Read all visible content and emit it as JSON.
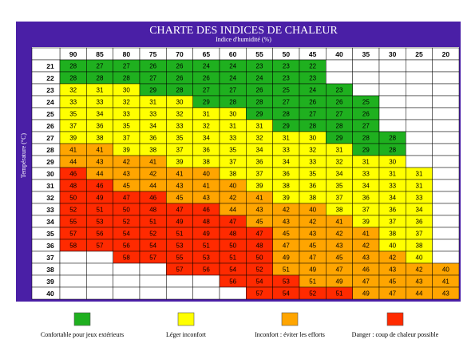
{
  "title": "CHARTE DES INDICES DE CHALEUR",
  "subtitle": "Indice d'humidité (%)",
  "y_label": "Température (°C)",
  "columns": [
    90,
    85,
    80,
    75,
    70,
    65,
    60,
    55,
    50,
    45,
    40,
    35,
    30,
    25,
    20
  ],
  "rows": [
    {
      "temp": 21,
      "values": [
        28,
        27,
        27,
        26,
        26,
        24,
        24,
        23,
        23,
        22,
        null,
        null,
        null,
        null,
        null
      ],
      "levels": [
        0,
        0,
        0,
        0,
        0,
        0,
        0,
        0,
        0,
        0,
        null,
        null,
        null,
        null,
        null
      ]
    },
    {
      "temp": 22,
      "values": [
        28,
        28,
        28,
        27,
        26,
        26,
        24,
        24,
        23,
        23,
        null,
        null,
        null,
        null,
        null
      ],
      "levels": [
        0,
        0,
        0,
        0,
        0,
        0,
        0,
        0,
        0,
        0,
        null,
        null,
        null,
        null,
        null
      ]
    },
    {
      "temp": 23,
      "values": [
        32,
        31,
        30,
        29,
        28,
        27,
        27,
        26,
        25,
        24,
        23,
        null,
        null,
        null,
        null
      ],
      "levels": [
        1,
        1,
        1,
        0,
        0,
        0,
        0,
        0,
        0,
        0,
        0,
        null,
        null,
        null,
        null
      ]
    },
    {
      "temp": 24,
      "values": [
        33,
        33,
        32,
        31,
        30,
        29,
        28,
        28,
        27,
        26,
        26,
        25,
        null,
        null,
        null
      ],
      "levels": [
        1,
        1,
        1,
        1,
        1,
        0,
        0,
        0,
        0,
        0,
        0,
        0,
        null,
        null,
        null
      ]
    },
    {
      "temp": 25,
      "values": [
        35,
        34,
        33,
        33,
        32,
        31,
        30,
        29,
        28,
        27,
        27,
        26,
        null,
        null,
        null
      ],
      "levels": [
        1,
        1,
        1,
        1,
        1,
        1,
        1,
        0,
        0,
        0,
        0,
        0,
        null,
        null,
        null
      ]
    },
    {
      "temp": 26,
      "values": [
        37,
        36,
        35,
        34,
        33,
        32,
        31,
        31,
        29,
        28,
        28,
        27,
        null,
        null,
        null
      ],
      "levels": [
        1,
        1,
        1,
        1,
        1,
        1,
        1,
        1,
        0,
        0,
        0,
        0,
        null,
        null,
        null
      ]
    },
    {
      "temp": 27,
      "values": [
        39,
        38,
        37,
        36,
        35,
        34,
        33,
        32,
        31,
        30,
        29,
        28,
        28,
        null,
        null
      ],
      "levels": [
        1,
        1,
        1,
        1,
        1,
        1,
        1,
        1,
        1,
        1,
        0,
        0,
        0,
        null,
        null
      ]
    },
    {
      "temp": 28,
      "values": [
        41,
        41,
        39,
        38,
        37,
        36,
        35,
        34,
        33,
        32,
        31,
        29,
        28,
        null,
        null
      ],
      "levels": [
        2,
        2,
        1,
        1,
        1,
        1,
        1,
        1,
        1,
        1,
        1,
        0,
        0,
        null,
        null
      ]
    },
    {
      "temp": 29,
      "values": [
        44,
        43,
        42,
        41,
        39,
        38,
        37,
        36,
        34,
        33,
        32,
        31,
        30,
        null,
        null
      ],
      "levels": [
        2,
        2,
        2,
        2,
        1,
        1,
        1,
        1,
        1,
        1,
        1,
        1,
        1,
        null,
        null
      ]
    },
    {
      "temp": 30,
      "values": [
        46,
        44,
        43,
        42,
        41,
        40,
        38,
        37,
        36,
        35,
        34,
        33,
        31,
        31,
        null
      ],
      "levels": [
        3,
        2,
        2,
        2,
        2,
        2,
        1,
        1,
        1,
        1,
        1,
        1,
        1,
        1,
        null
      ]
    },
    {
      "temp": 31,
      "values": [
        48,
        46,
        45,
        44,
        43,
        41,
        40,
        39,
        38,
        36,
        35,
        34,
        33,
        31,
        null
      ],
      "levels": [
        3,
        3,
        2,
        2,
        2,
        2,
        2,
        1,
        1,
        1,
        1,
        1,
        1,
        1,
        null
      ]
    },
    {
      "temp": 32,
      "values": [
        50,
        49,
        47,
        46,
        45,
        43,
        42,
        41,
        39,
        38,
        37,
        36,
        34,
        33,
        null
      ],
      "levels": [
        3,
        3,
        3,
        3,
        2,
        2,
        2,
        2,
        1,
        1,
        1,
        1,
        1,
        1,
        null
      ]
    },
    {
      "temp": 33,
      "values": [
        52,
        51,
        50,
        48,
        47,
        46,
        44,
        43,
        42,
        40,
        38,
        37,
        36,
        34,
        null
      ],
      "levels": [
        3,
        3,
        3,
        3,
        3,
        3,
        2,
        2,
        2,
        2,
        1,
        1,
        1,
        1,
        null
      ]
    },
    {
      "temp": 34,
      "values": [
        55,
        53,
        52,
        51,
        49,
        48,
        47,
        45,
        43,
        42,
        41,
        39,
        37,
        36,
        null
      ],
      "levels": [
        3,
        3,
        3,
        3,
        3,
        3,
        3,
        2,
        2,
        2,
        2,
        1,
        1,
        1,
        null
      ]
    },
    {
      "temp": 35,
      "values": [
        57,
        56,
        54,
        52,
        51,
        49,
        48,
        47,
        45,
        43,
        42,
        41,
        38,
        37,
        null
      ],
      "levels": [
        3,
        3,
        3,
        3,
        3,
        3,
        3,
        3,
        2,
        2,
        2,
        2,
        1,
        1,
        null
      ]
    },
    {
      "temp": 36,
      "values": [
        58,
        57,
        56,
        54,
        53,
        51,
        50,
        48,
        47,
        45,
        43,
        42,
        40,
        38,
        null
      ],
      "levels": [
        3,
        3,
        3,
        3,
        3,
        3,
        3,
        3,
        2,
        2,
        2,
        2,
        1,
        1,
        null
      ]
    },
    {
      "temp": 37,
      "values": [
        null,
        null,
        58,
        57,
        55,
        53,
        51,
        50,
        49,
        47,
        45,
        43,
        42,
        40,
        null
      ],
      "levels": [
        null,
        null,
        3,
        3,
        3,
        3,
        3,
        3,
        2,
        2,
        2,
        2,
        2,
        1,
        null
      ]
    },
    {
      "temp": 38,
      "values": [
        null,
        null,
        null,
        null,
        57,
        56,
        54,
        52,
        51,
        49,
        47,
        46,
        43,
        42,
        40
      ],
      "levels": [
        null,
        null,
        null,
        null,
        3,
        3,
        3,
        3,
        2,
        2,
        2,
        2,
        2,
        2,
        2
      ]
    },
    {
      "temp": 39,
      "values": [
        null,
        null,
        null,
        null,
        null,
        null,
        56,
        54,
        53,
        51,
        49,
        47,
        45,
        43,
        41
      ],
      "levels": [
        null,
        null,
        null,
        null,
        null,
        null,
        3,
        3,
        3,
        2,
        2,
        2,
        2,
        2,
        2
      ]
    },
    {
      "temp": 40,
      "values": [
        null,
        null,
        null,
        null,
        null,
        null,
        null,
        57,
        54,
        52,
        51,
        49,
        47,
        44,
        43
      ],
      "levels": [
        null,
        null,
        null,
        null,
        null,
        null,
        null,
        3,
        3,
        3,
        3,
        2,
        2,
        2,
        2
      ]
    }
  ],
  "legend": [
    {
      "label": "Confortable pour jeux extérieurs",
      "color": "#1fb01f"
    },
    {
      "label": "Léger inconfort",
      "color": "#ffff00"
    },
    {
      "label": "Inconfort : éviter les efforts",
      "color": "#ffa500"
    },
    {
      "label": "Danger : coup de chaleur possible",
      "color": "#ff2a00"
    }
  ]
}
